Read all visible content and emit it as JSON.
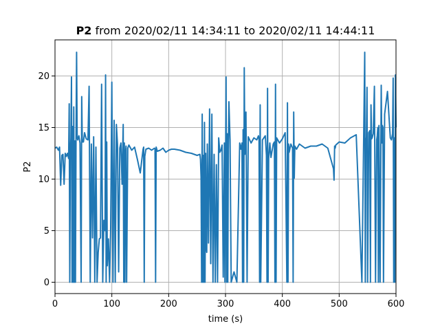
{
  "chart_data": {
    "type": "line",
    "title_bold": "P2",
    "title_rest": " from 2020/02/11 14:34:11 to 2020/02/11 14:44:11",
    "xlabel": "time (s)",
    "ylabel": "P2",
    "xlim": [
      0,
      600
    ],
    "ylim": [
      -1.1,
      23.5
    ],
    "xticks": [
      0,
      100,
      200,
      300,
      400,
      500,
      600
    ],
    "yticks": [
      0,
      5,
      10,
      15,
      20
    ],
    "grid": true,
    "series": [
      {
        "color": "#1f77b4",
        "x": [
          0,
          3,
          6,
          8,
          10,
          12,
          14,
          16,
          18,
          20,
          22,
          24,
          25,
          26,
          27,
          28,
          29,
          30,
          31,
          32,
          33,
          34,
          35,
          36,
          37,
          38,
          39,
          40,
          42,
          44,
          46,
          47,
          48,
          50,
          52,
          55,
          58,
          60,
          62,
          64,
          66,
          68,
          70,
          72,
          74,
          76,
          78,
          80,
          82,
          84,
          86,
          88,
          89,
          90,
          91,
          92,
          94,
          96,
          98,
          100,
          102,
          104,
          106,
          108,
          110,
          112,
          114,
          116,
          118,
          120,
          121,
          122,
          123,
          124,
          125,
          126,
          128,
          130,
          135,
          140,
          145,
          150,
          155,
          156,
          157,
          158,
          160,
          165,
          170,
          175,
          176,
          177,
          178,
          180,
          185,
          190,
          195,
          200,
          205,
          210,
          220,
          230,
          240,
          250,
          255,
          256,
          257,
          258,
          259,
          260,
          261,
          262,
          263,
          264,
          265,
          266,
          267,
          268,
          270,
          272,
          274,
          276,
          278,
          280,
          282,
          284,
          286,
          288,
          290,
          292,
          294,
          296,
          298,
          299,
          300,
          301,
          302,
          303,
          304,
          305,
          306,
          308,
          310,
          315,
          320,
          325,
          326,
          327,
          328,
          329,
          330,
          331,
          332,
          333,
          334,
          336,
          338,
          340,
          345,
          350,
          355,
          358,
          359,
          360,
          361,
          362,
          365,
          370,
          372,
          373,
          374,
          375,
          376,
          378,
          380,
          384,
          386,
          387,
          388,
          389,
          390,
          395,
          400,
          405,
          408,
          409,
          410,
          411,
          412,
          415,
          418,
          419,
          420,
          421,
          422,
          425,
          430,
          440,
          450,
          460,
          470,
          480,
          490,
          491,
          492,
          493,
          494,
          500,
          510,
          520,
          530,
          540,
          545,
          546,
          547,
          548,
          549,
          550,
          552,
          554,
          555,
          556,
          557,
          558,
          560,
          562,
          564,
          566,
          567,
          568,
          569,
          570,
          572,
          574,
          575,
          576,
          577,
          578,
          580,
          585,
          590,
          592,
          594,
          595,
          596,
          597,
          598,
          599,
          600
        ],
        "y": [
          13.0,
          13.1,
          12.8,
          13.1,
          9.4,
          12.3,
          12.4,
          9.5,
          12.5,
          12.2,
          12.5,
          12.0,
          17.3,
          0.0,
          12.5,
          14.0,
          19.9,
          0.0,
          15.1,
          0.0,
          17.0,
          0.0,
          13.7,
          0.0,
          13.9,
          22.3,
          14.0,
          13.8,
          14.2,
          13.5,
          0.0,
          18.0,
          13.6,
          13.6,
          14.5,
          13.9,
          13.8,
          19.0,
          0.0,
          13.4,
          4.3,
          14.1,
          0.0,
          13.1,
          0.0,
          2.9,
          4.2,
          4.3,
          19.2,
          0.0,
          6.0,
          5.0,
          20.1,
          0.0,
          13.6,
          1.6,
          4.2,
          0.0,
          5.3,
          19.4,
          0.0,
          15.7,
          0.0,
          15.3,
          13.3,
          1.0,
          13.0,
          13.5,
          9.5,
          15.3,
          0.0,
          13.5,
          0.0,
          12.5,
          13.2,
          0.0,
          13.0,
          13.3,
          12.8,
          13.1,
          11.9,
          10.6,
          12.9,
          13.1,
          0.0,
          12.2,
          12.9,
          13.0,
          12.8,
          13.0,
          12.9,
          0.0,
          13.1,
          12.7,
          12.8,
          13.0,
          12.6,
          12.8,
          12.9,
          12.9,
          12.8,
          12.6,
          12.5,
          12.3,
          12.4,
          11.9,
          10.2,
          0.0,
          16.3,
          0.0,
          12.3,
          0.0,
          15.5,
          0.0,
          12.5,
          3.5,
          2.9,
          13.4,
          3.8,
          16.8,
          1.8,
          16.3,
          0.0,
          12.4,
          0.0,
          11.4,
          0.0,
          14.0,
          12.6,
          12.8,
          13.3,
          0.5,
          13.5,
          0.0,
          10.2,
          19.9,
          0.0,
          14.4,
          0.0,
          12.8,
          17.5,
          13.8,
          0.0,
          1.0,
          0.0,
          13.5,
          13.3,
          12.9,
          13.0,
          13.5,
          0.0,
          14.8,
          0.0,
          20.8,
          12.4,
          16.5,
          0.0,
          14.1,
          13.5,
          14.0,
          13.8,
          14.2,
          13.8,
          0.0,
          17.2,
          0.0,
          13.8,
          14.2,
          12.3,
          0.0,
          18.8,
          0.0,
          12.0,
          13.5,
          12.1,
          13.4,
          13.6,
          0.0,
          19.2,
          0.0,
          14.0,
          13.5,
          13.9,
          14.5,
          0.0,
          17.4,
          0.0,
          13.4,
          12.6,
          13.4,
          13.0,
          0.0,
          16.5,
          10.1,
          13.2,
          12.9,
          13.4,
          13.0,
          13.2,
          13.2,
          13.4,
          13.0,
          11.0,
          9.9,
          13.2,
          13.0,
          13.3,
          13.6,
          13.5,
          14.0,
          14.3,
          0.0,
          22.3,
          0.0,
          13.9,
          14.0,
          18.9,
          0.0,
          14.5,
          14.7,
          0.0,
          17.2,
          13.9,
          14.0,
          14.4,
          19.0,
          0.0,
          13.8,
          14.2,
          15.0,
          0.0,
          15.2,
          0.0,
          19.1,
          13.5,
          15.2,
          15.0,
          0.0,
          16.3,
          18.5,
          14.0,
          13.8,
          14.4,
          19.8,
          0.0,
          14.0,
          0.0,
          20.1,
          15.0
        ]
      }
    ]
  }
}
